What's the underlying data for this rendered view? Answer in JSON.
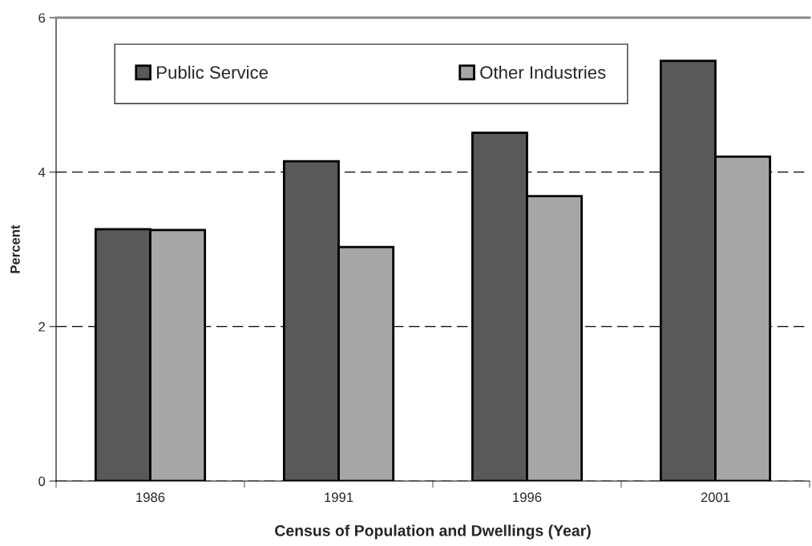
{
  "chart_data": {
    "type": "bar",
    "xlabel": "Census of Population and Dwellings (Year)",
    "ylabel": "Percent",
    "categories": [
      "1986",
      "1991",
      "1996",
      "2001"
    ],
    "series": [
      {
        "name": "Public Service",
        "color": "#595959",
        "values": [
          3.26,
          4.14,
          4.51,
          5.44
        ]
      },
      {
        "name": "Other Industries",
        "color": "#a6a6a6",
        "values": [
          3.25,
          3.03,
          3.69,
          4.2
        ]
      }
    ],
    "ylim": [
      0,
      6
    ],
    "yticks": [
      0,
      2,
      4,
      6
    ],
    "grid": "y",
    "legend": "top"
  }
}
